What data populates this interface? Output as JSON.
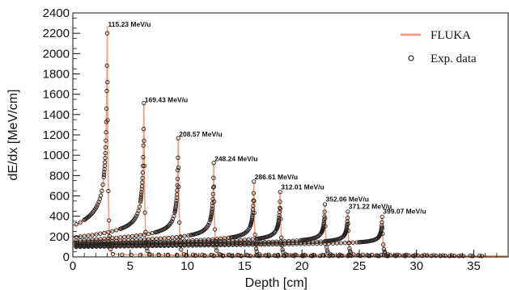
{
  "chart_data": {
    "type": "line",
    "xlabel": "Depth [cm]",
    "ylabel": "dE/dx [MeV/cm]",
    "xlim": [
      0,
      38
    ],
    "ylim": [
      0,
      2400
    ],
    "xticks": [
      0,
      5,
      10,
      15,
      20,
      25,
      30,
      35
    ],
    "yticks": [
      0,
      200,
      400,
      600,
      800,
      1000,
      1200,
      1400,
      1600,
      1800,
      2000,
      2200,
      2400
    ],
    "legend": {
      "position": "top-right",
      "entries": [
        {
          "label": "FLUKA",
          "marker": "line",
          "color": "#f0a080"
        },
        {
          "label": "Exp. data",
          "marker": "open-circle",
          "color": "#222222"
        }
      ]
    },
    "series": [
      {
        "label": "115.23 MeV/u",
        "entrance": 200,
        "peak_depth": 3.0,
        "peak": 2200
      },
      {
        "label": "169.43 MeV/u",
        "entrance": 150,
        "peak_depth": 6.2,
        "peak": 1460
      },
      {
        "label": "208.57 MeV/u",
        "entrance": 135,
        "peak_depth": 9.2,
        "peak": 1120
      },
      {
        "label": "248.24 MeV/u",
        "entrance": 125,
        "peak_depth": 12.3,
        "peak": 880
      },
      {
        "label": "286.61 MeV/u",
        "entrance": 115,
        "peak_depth": 15.8,
        "peak": 700
      },
      {
        "label": "312.01 MeV/u",
        "entrance": 110,
        "peak_depth": 18.1,
        "peak": 600
      },
      {
        "label": "352.06 MeV/u",
        "entrance": 105,
        "peak_depth": 22.0,
        "peak": 480
      },
      {
        "label": "371.22 MeV/u",
        "entrance": 100,
        "peak_depth": 24.0,
        "peak": 410
      },
      {
        "label": "399.07 MeV/u",
        "entrance": 95,
        "peak_depth": 27.0,
        "peak": 360
      }
    ]
  }
}
